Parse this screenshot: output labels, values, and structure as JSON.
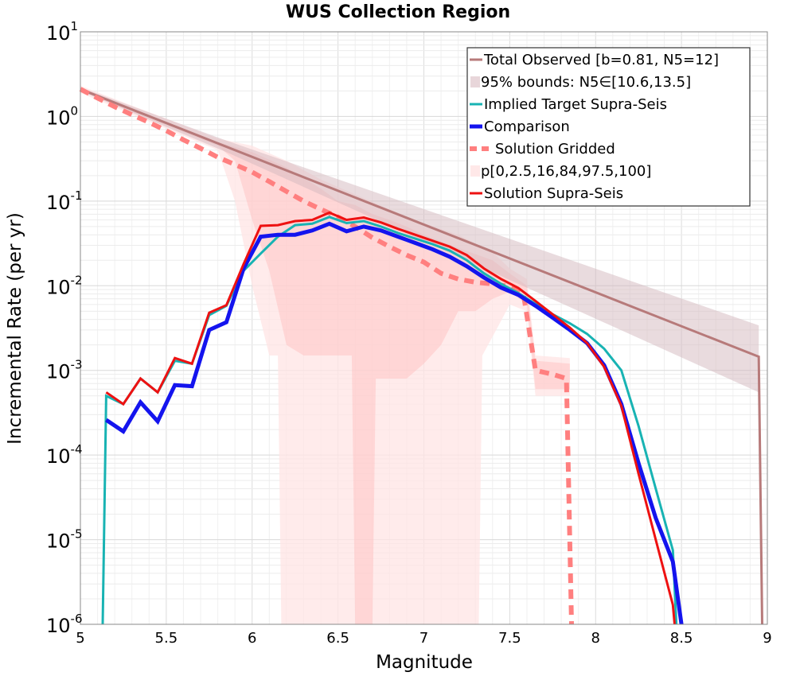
{
  "chart_data": {
    "type": "line",
    "title": "WUS Collection Region",
    "xlabel": "Magnitude",
    "ylabel": "Incremental Rate (per yr)",
    "xlim": [
      5,
      9
    ],
    "ylim_log10": [
      -6,
      1
    ],
    "y_scale": "log",
    "x_ticks": [
      "5",
      "5.5",
      "6",
      "6.5",
      "7",
      "7.5",
      "8",
      "8.5",
      "9"
    ],
    "y_ticks": [
      {
        "base": "10",
        "exp": "1"
      },
      {
        "base": "10",
        "exp": "0"
      },
      {
        "base": "10",
        "exp": "-1"
      },
      {
        "base": "10",
        "exp": "-2"
      },
      {
        "base": "10",
        "exp": "-3"
      },
      {
        "base": "10",
        "exp": "-4"
      },
      {
        "base": "10",
        "exp": "-5"
      },
      {
        "base": "10",
        "exp": "-6"
      }
    ],
    "grid": true,
    "legend_position": "top-right",
    "colors": {
      "total_observed": "#b77a7a",
      "bounds_95": "#e8dadd",
      "implied_target": "#18b3b3",
      "comparison": "#1414ee",
      "solution_gridded": "#ff7f7f",
      "percentiles": "#ffe4e4",
      "solution_supra": "#ee1111"
    },
    "series": [
      {
        "name": "Total Observed [b=0.81, N5=12]",
        "style": "solid",
        "points": [
          [
            5.0,
            2.1
          ],
          [
            8.95,
            0.00145
          ],
          [
            8.97,
            3e-07
          ]
        ]
      },
      {
        "name": "95% bounds: N5∈[10.6,13.5]",
        "style": "band",
        "lower": [
          [
            5.0,
            2.0
          ],
          [
            5.85,
            0.38
          ],
          [
            8.95,
            0.00055
          ]
        ],
        "upper": [
          [
            5.0,
            2.2
          ],
          [
            5.85,
            0.52
          ],
          [
            8.95,
            0.0034
          ]
        ]
      },
      {
        "name": "Implied Target Supra-Seis",
        "style": "solid",
        "points": [
          [
            5.13,
            9e-07
          ],
          [
            5.15,
            0.0005
          ],
          [
            5.25,
            0.0004
          ],
          [
            5.35,
            0.0008
          ],
          [
            5.45,
            0.00055
          ],
          [
            5.55,
            0.0013
          ],
          [
            5.65,
            0.0012
          ],
          [
            5.75,
            0.0045
          ],
          [
            5.85,
            0.0058
          ],
          [
            5.95,
            0.015
          ],
          [
            6.05,
            0.024
          ],
          [
            6.15,
            0.038
          ],
          [
            6.25,
            0.052
          ],
          [
            6.35,
            0.054
          ],
          [
            6.45,
            0.065
          ],
          [
            6.55,
            0.055
          ],
          [
            6.65,
            0.058
          ],
          [
            6.75,
            0.05
          ],
          [
            6.85,
            0.042
          ],
          [
            6.95,
            0.036
          ],
          [
            7.05,
            0.031
          ],
          [
            7.15,
            0.026
          ],
          [
            7.25,
            0.02
          ],
          [
            7.35,
            0.014
          ],
          [
            7.45,
            0.0105
          ],
          [
            7.55,
            0.0082
          ],
          [
            7.65,
            0.0061
          ],
          [
            7.75,
            0.0046
          ],
          [
            7.85,
            0.0036
          ],
          [
            7.95,
            0.0027
          ],
          [
            8.05,
            0.0018
          ],
          [
            8.15,
            0.001
          ],
          [
            8.25,
            0.00022
          ],
          [
            8.35,
            4e-05
          ],
          [
            8.45,
            7.5e-06
          ],
          [
            8.47,
            3e-07
          ]
        ]
      },
      {
        "name": "Comparison",
        "style": "solid",
        "points": [
          [
            5.15,
            0.00026
          ],
          [
            5.25,
            0.00019
          ],
          [
            5.35,
            0.00042
          ],
          [
            5.45,
            0.00025
          ],
          [
            5.55,
            0.00067
          ],
          [
            5.65,
            0.00065
          ],
          [
            5.75,
            0.003
          ],
          [
            5.85,
            0.0037
          ],
          [
            5.95,
            0.016
          ],
          [
            6.05,
            0.038
          ],
          [
            6.15,
            0.04
          ],
          [
            6.25,
            0.04
          ],
          [
            6.35,
            0.045
          ],
          [
            6.45,
            0.054
          ],
          [
            6.55,
            0.044
          ],
          [
            6.65,
            0.05
          ],
          [
            6.75,
            0.045
          ],
          [
            6.85,
            0.038
          ],
          [
            6.95,
            0.032
          ],
          [
            7.05,
            0.027
          ],
          [
            7.15,
            0.022
          ],
          [
            7.25,
            0.017
          ],
          [
            7.35,
            0.0125
          ],
          [
            7.45,
            0.0095
          ],
          [
            7.55,
            0.0078
          ],
          [
            7.65,
            0.0058
          ],
          [
            7.75,
            0.0042
          ],
          [
            7.85,
            0.003
          ],
          [
            7.95,
            0.0021
          ],
          [
            8.05,
            0.00115
          ],
          [
            8.15,
            0.0004
          ],
          [
            8.25,
            8e-05
          ],
          [
            8.35,
            1.8e-05
          ],
          [
            8.45,
            5.5e-06
          ],
          [
            8.5,
            7e-07
          ]
        ]
      },
      {
        "name": "Solution Gridded",
        "style": "dashed",
        "points": [
          [
            5.0,
            2.1
          ],
          [
            5.1,
            1.65
          ],
          [
            5.2,
            1.3
          ],
          [
            5.3,
            1.05
          ],
          [
            5.4,
            0.85
          ],
          [
            5.5,
            0.68
          ],
          [
            5.6,
            0.53
          ],
          [
            5.7,
            0.42
          ],
          [
            5.8,
            0.33
          ],
          [
            5.9,
            0.27
          ],
          [
            6.0,
            0.22
          ],
          [
            6.1,
            0.17
          ],
          [
            6.2,
            0.13
          ],
          [
            6.3,
            0.1
          ],
          [
            6.4,
            0.08
          ],
          [
            6.5,
            0.065
          ],
          [
            6.6,
            0.05
          ],
          [
            6.7,
            0.037
          ],
          [
            6.8,
            0.029
          ],
          [
            6.9,
            0.023
          ],
          [
            7.0,
            0.019
          ],
          [
            7.1,
            0.014
          ],
          [
            7.2,
            0.012
          ],
          [
            7.3,
            0.011
          ],
          [
            7.4,
            0.0105
          ],
          [
            7.5,
            0.0098
          ],
          [
            7.58,
            0.008
          ],
          [
            7.65,
            0.001
          ],
          [
            7.75,
            0.0009
          ],
          [
            7.83,
            0.0008
          ],
          [
            7.86,
            3e-07
          ]
        ]
      },
      {
        "name": "p[0,2.5,16,84,97.5,100]",
        "style": "band",
        "inner_lower": [
          [
            5.0,
            2.0
          ],
          [
            5.8,
            0.45
          ],
          [
            5.9,
            0.3
          ],
          [
            6.0,
            0.06
          ],
          [
            6.1,
            0.015
          ],
          [
            6.2,
            0.002
          ],
          [
            6.3,
            0.0015
          ],
          [
            6.4,
            0.0015
          ],
          [
            6.5,
            0.0015
          ],
          [
            6.58,
            0.0015
          ],
          [
            6.6,
            3e-07
          ],
          [
            6.7,
            3e-07
          ],
          [
            6.72,
            0.0008
          ],
          [
            6.8,
            0.0008
          ],
          [
            6.9,
            0.0008
          ],
          [
            7.0,
            0.0012
          ],
          [
            7.1,
            0.002
          ],
          [
            7.2,
            0.005
          ],
          [
            7.3,
            0.005
          ],
          [
            7.4,
            0.007
          ],
          [
            7.5,
            0.0085
          ],
          [
            7.6,
            0.006
          ],
          [
            7.65,
            0.0006
          ],
          [
            7.85,
            0.0006
          ]
        ],
        "inner_upper": [
          [
            5.0,
            2.2
          ],
          [
            5.8,
            0.5
          ],
          [
            6.0,
            0.38
          ],
          [
            6.2,
            0.25
          ],
          [
            6.4,
            0.14
          ],
          [
            6.5,
            0.1
          ],
          [
            6.6,
            0.09
          ],
          [
            6.7,
            0.07
          ],
          [
            6.8,
            0.06
          ],
          [
            6.9,
            0.05
          ],
          [
            7.0,
            0.04
          ],
          [
            7.2,
            0.028
          ],
          [
            7.4,
            0.02
          ],
          [
            7.5,
            0.014
          ],
          [
            7.6,
            0.01
          ],
          [
            7.65,
            0.0013
          ],
          [
            7.85,
            0.0012
          ]
        ],
        "outer_lower": [
          [
            5.0,
            1.9
          ],
          [
            5.8,
            0.4
          ],
          [
            5.9,
            0.1
          ],
          [
            6.0,
            0.01
          ],
          [
            6.1,
            0.0015
          ],
          [
            6.15,
            0.0015
          ],
          [
            6.17,
            3e-07
          ],
          [
            7.32,
            3e-07
          ],
          [
            7.34,
            0.0015
          ],
          [
            7.4,
            0.0025
          ],
          [
            7.5,
            0.006
          ],
          [
            7.6,
            0.005
          ],
          [
            7.65,
            0.0005
          ],
          [
            7.85,
            0.0005
          ]
        ],
        "outer_upper": [
          [
            5.0,
            2.3
          ],
          [
            5.8,
            0.55
          ],
          [
            6.0,
            0.45
          ],
          [
            6.2,
            0.3
          ],
          [
            6.4,
            0.18
          ],
          [
            6.6,
            0.12
          ],
          [
            6.8,
            0.08
          ],
          [
            7.0,
            0.055
          ],
          [
            7.2,
            0.04
          ],
          [
            7.4,
            0.025
          ],
          [
            7.5,
            0.016
          ],
          [
            7.6,
            0.012
          ],
          [
            7.65,
            0.0015
          ],
          [
            7.85,
            0.0014
          ]
        ]
      },
      {
        "name": "Solution Supra-Seis",
        "style": "solid",
        "points": [
          [
            5.15,
            0.00055
          ],
          [
            5.25,
            0.0004
          ],
          [
            5.35,
            0.0008
          ],
          [
            5.45,
            0.00055
          ],
          [
            5.55,
            0.0014
          ],
          [
            5.65,
            0.0012
          ],
          [
            5.75,
            0.0048
          ],
          [
            5.85,
            0.0059
          ],
          [
            5.95,
            0.018
          ],
          [
            6.05,
            0.051
          ],
          [
            6.15,
            0.052
          ],
          [
            6.25,
            0.058
          ],
          [
            6.35,
            0.06
          ],
          [
            6.45,
            0.073
          ],
          [
            6.55,
            0.06
          ],
          [
            6.65,
            0.064
          ],
          [
            6.75,
            0.056
          ],
          [
            6.85,
            0.047
          ],
          [
            6.95,
            0.04
          ],
          [
            7.05,
            0.034
          ],
          [
            7.15,
            0.029
          ],
          [
            7.25,
            0.023
          ],
          [
            7.35,
            0.016
          ],
          [
            7.45,
            0.012
          ],
          [
            7.55,
            0.0094
          ],
          [
            7.65,
            0.0066
          ],
          [
            7.75,
            0.0046
          ],
          [
            7.85,
            0.0032
          ],
          [
            7.95,
            0.0021
          ],
          [
            8.05,
            0.0011
          ],
          [
            8.15,
            0.00038
          ],
          [
            8.25,
            6e-05
          ],
          [
            8.35,
            1e-05
          ],
          [
            8.45,
            1.7e-06
          ],
          [
            8.46,
            3e-07
          ]
        ]
      }
    ]
  }
}
